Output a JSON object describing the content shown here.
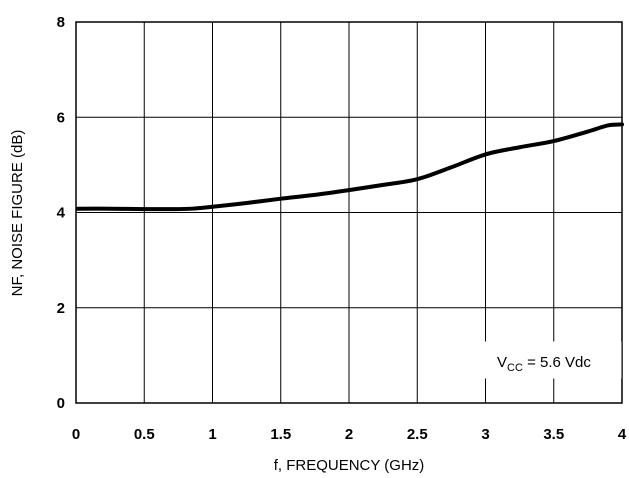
{
  "chart_data": {
    "type": "line",
    "xlabel": "f, FREQUENCY (GHz)",
    "ylabel": "NF, NOISE FIGURE (dB)",
    "xlim": [
      0,
      4
    ],
    "ylim": [
      0,
      8
    ],
    "xticks": [
      0,
      0.5,
      1,
      1.5,
      2,
      2.5,
      3,
      3.5,
      4
    ],
    "xtick_labels": [
      "0",
      "0.5",
      "1",
      "1.5",
      "2",
      "2.5",
      "3",
      "3.5",
      "4"
    ],
    "yticks": [
      0,
      2,
      4,
      6,
      8
    ],
    "ytick_labels": [
      "0",
      "2",
      "4",
      "6",
      "8"
    ],
    "grid": true,
    "series": [
      {
        "x": [
          0.01,
          0.25,
          0.5,
          0.7,
          0.85,
          1.0,
          1.25,
          1.5,
          1.75,
          2.0,
          2.25,
          2.5,
          2.75,
          3.0,
          3.25,
          3.5,
          3.75,
          3.9,
          4.0
        ],
        "y": [
          4.08,
          4.08,
          4.07,
          4.07,
          4.08,
          4.12,
          4.2,
          4.29,
          4.37,
          4.47,
          4.58,
          4.7,
          4.95,
          5.22,
          5.37,
          5.5,
          5.7,
          5.83,
          5.85
        ]
      }
    ],
    "annotation": {
      "main": "V",
      "subscript": "CC",
      "rest": " = 5.6 Vdc"
    }
  }
}
